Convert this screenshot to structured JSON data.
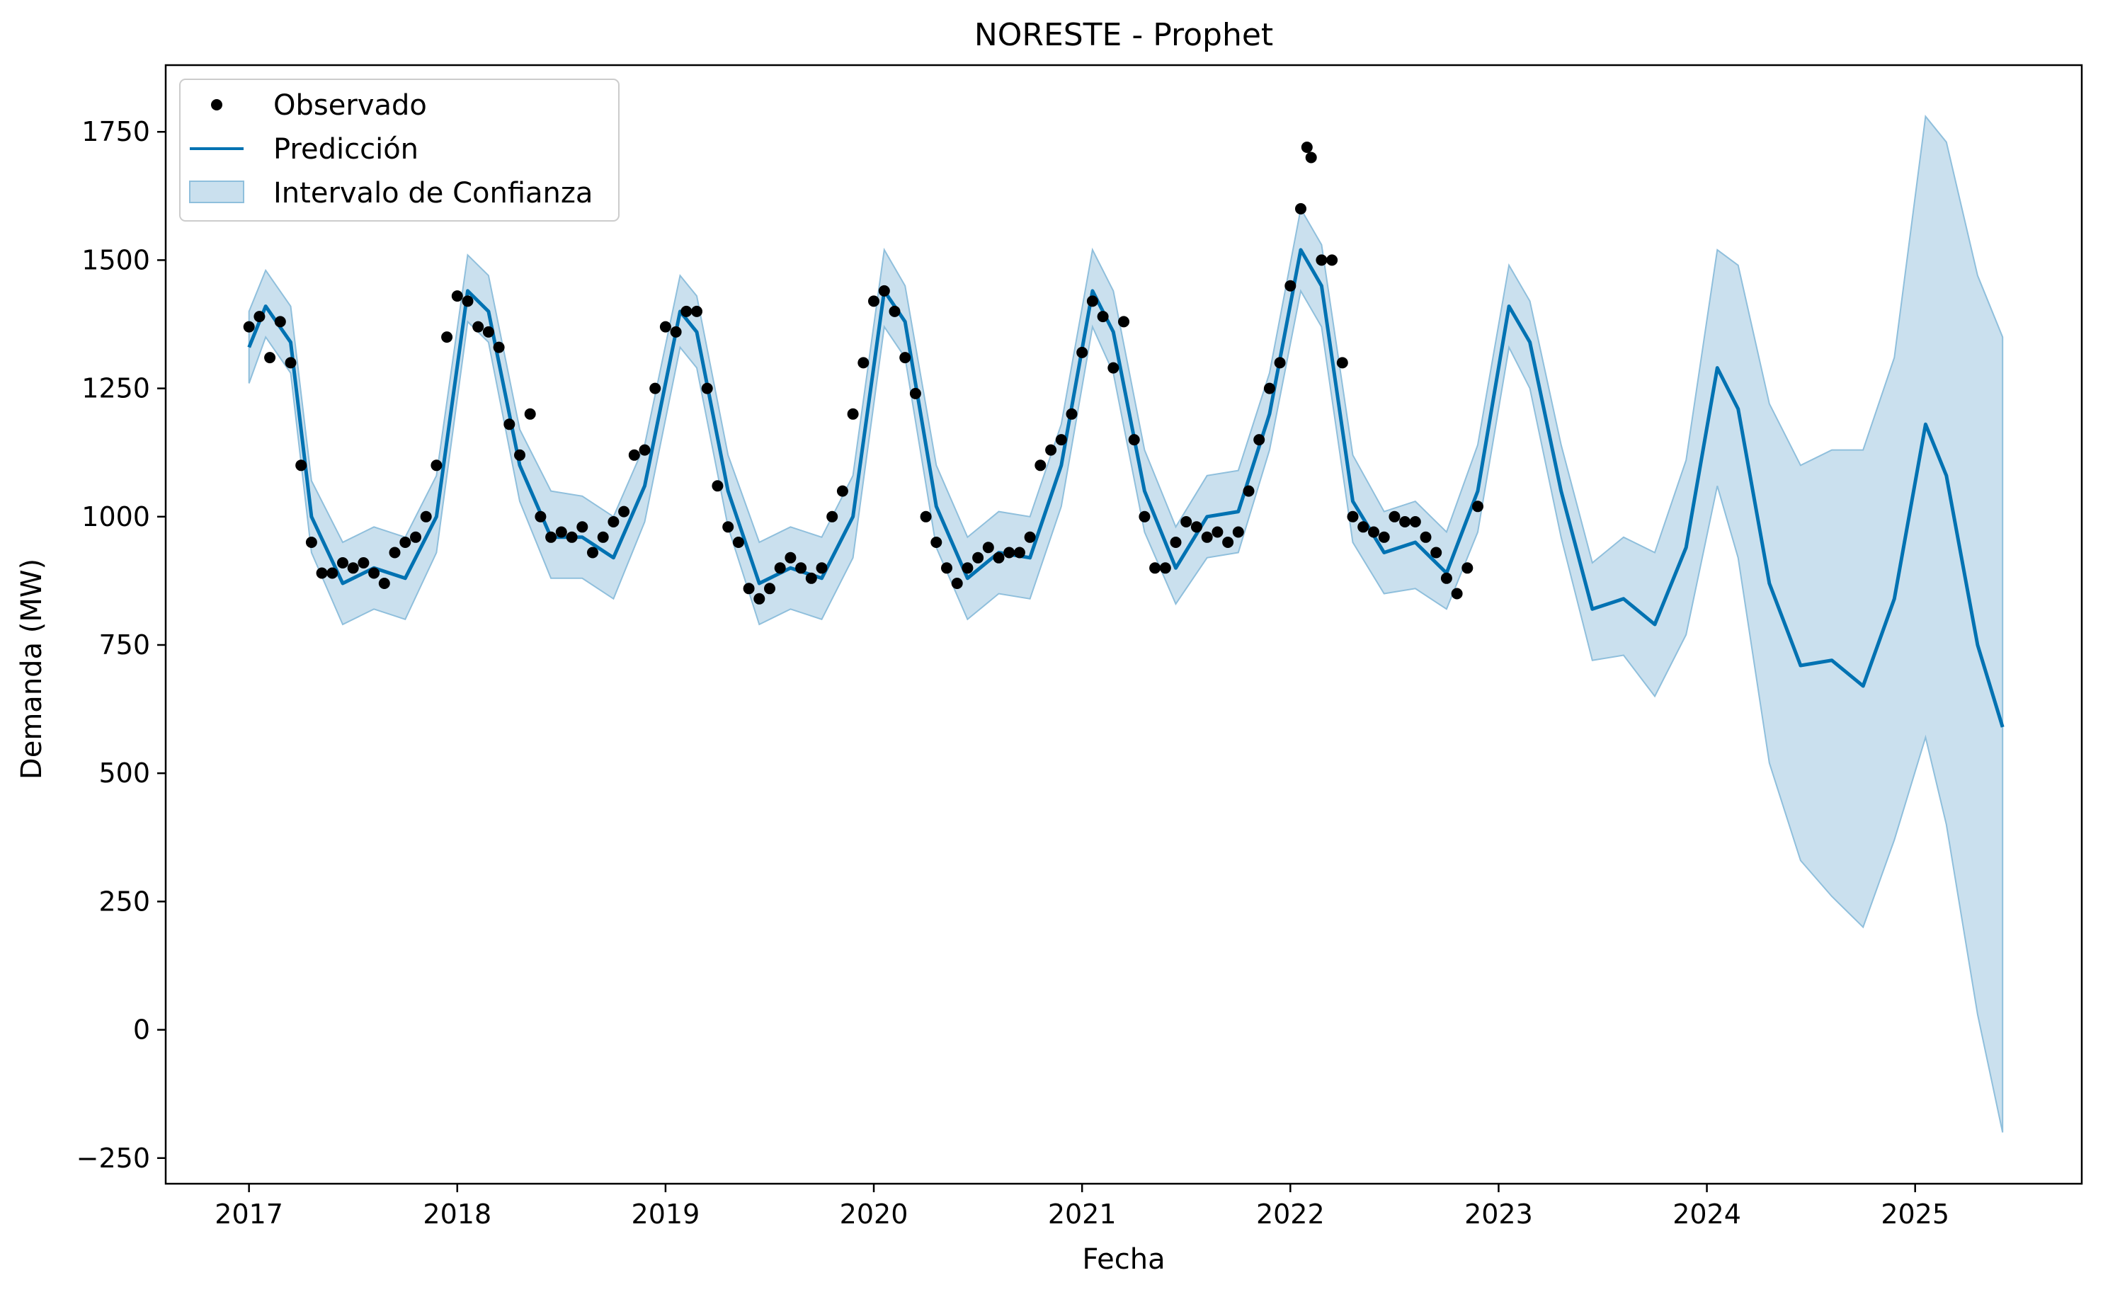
{
  "chart_data": {
    "type": "line",
    "title": "NORESTE - Prophet",
    "xlabel": "Fecha",
    "ylabel": "Demanda (MW)",
    "xlim": [
      2016.6,
      2025.8
    ],
    "ylim": [
      -300,
      1880
    ],
    "x_ticks": [
      2017,
      2018,
      2019,
      2020,
      2021,
      2022,
      2023,
      2024,
      2025
    ],
    "x_tick_labels": [
      "2017",
      "2018",
      "2019",
      "2020",
      "2021",
      "2022",
      "2023",
      "2024",
      "2025"
    ],
    "y_ticks": [
      -250,
      0,
      250,
      500,
      750,
      1000,
      1250,
      1500,
      1750
    ],
    "y_tick_labels": [
      "−250",
      "0",
      "250",
      "500",
      "750",
      "1000",
      "1250",
      "1500",
      "1750"
    ],
    "grid": false,
    "legend_position": "top-left",
    "legend": [
      "Observado",
      "Predicción",
      "Intervalo de Confianza"
    ],
    "colors": {
      "observed": "#000000",
      "prediction": "#0072B2",
      "interval_fill": "#a6cbe3",
      "interval_edge": "#8fbfdc"
    },
    "series": [
      {
        "name": "Predicción",
        "x": [
          2017.0,
          2017.08,
          2017.2,
          2017.3,
          2017.45,
          2017.6,
          2017.75,
          2017.9,
          2018.05,
          2018.15,
          2018.3,
          2018.45,
          2018.6,
          2018.75,
          2018.9,
          2019.07,
          2019.15,
          2019.3,
          2019.45,
          2019.6,
          2019.75,
          2019.9,
          2020.05,
          2020.15,
          2020.3,
          2020.45,
          2020.6,
          2020.75,
          2020.9,
          2021.05,
          2021.15,
          2021.3,
          2021.45,
          2021.6,
          2021.75,
          2021.9,
          2022.05,
          2022.15,
          2022.3,
          2022.45,
          2022.6,
          2022.75,
          2022.9,
          2023.05,
          2023.15,
          2023.3,
          2023.45,
          2023.6,
          2023.75,
          2023.9,
          2024.05,
          2024.15,
          2024.3,
          2024.45,
          2024.6,
          2024.75,
          2024.9,
          2025.05,
          2025.15,
          2025.3,
          2025.42
        ],
        "values": [
          1330,
          1410,
          1340,
          1000,
          870,
          900,
          880,
          1000,
          1440,
          1400,
          1100,
          960,
          960,
          920,
          1060,
          1400,
          1360,
          1050,
          870,
          900,
          880,
          1000,
          1440,
          1380,
          1020,
          880,
          930,
          920,
          1100,
          1440,
          1360,
          1050,
          900,
          1000,
          1010,
          1200,
          1520,
          1450,
          1030,
          930,
          950,
          890,
          1050,
          1410,
          1340,
          1050,
          820,
          840,
          790,
          940,
          1290,
          1210,
          870,
          710,
          720,
          670,
          840,
          1180,
          1080,
          750,
          590
        ]
      },
      {
        "name": "Observado",
        "x": [
          2017.0,
          2017.05,
          2017.1,
          2017.15,
          2017.2,
          2017.25,
          2017.3,
          2017.35,
          2017.4,
          2017.45,
          2017.5,
          2017.55,
          2017.6,
          2017.65,
          2017.7,
          2017.75,
          2017.8,
          2017.85,
          2017.9,
          2017.95,
          2018.0,
          2018.05,
          2018.1,
          2018.15,
          2018.2,
          2018.25,
          2018.3,
          2018.35,
          2018.4,
          2018.45,
          2018.5,
          2018.55,
          2018.6,
          2018.65,
          2018.7,
          2018.75,
          2018.8,
          2018.85,
          2018.9,
          2018.95,
          2019.0,
          2019.05,
          2019.1,
          2019.15,
          2019.2,
          2019.25,
          2019.3,
          2019.35,
          2019.4,
          2019.45,
          2019.5,
          2019.55,
          2019.6,
          2019.65,
          2019.7,
          2019.75,
          2019.8,
          2019.85,
          2019.9,
          2019.95,
          2020.0,
          2020.05,
          2020.1,
          2020.15,
          2020.2,
          2020.25,
          2020.3,
          2020.35,
          2020.4,
          2020.45,
          2020.5,
          2020.55,
          2020.6,
          2020.65,
          2020.7,
          2020.75,
          2020.8,
          2020.85,
          2020.9,
          2020.95,
          2021.0,
          2021.05,
          2021.1,
          2021.15,
          2021.2,
          2021.25,
          2021.3,
          2021.35,
          2021.4,
          2021.45,
          2021.5,
          2021.55,
          2021.6,
          2021.65,
          2021.7,
          2021.75,
          2021.8,
          2021.85,
          2021.9,
          2021.95,
          2022.0,
          2022.05,
          2022.08,
          2022.1,
          2022.15,
          2022.2,
          2022.25,
          2022.3,
          2022.35,
          2022.4,
          2022.45,
          2022.5,
          2022.55,
          2022.6,
          2022.65,
          2022.7,
          2022.75,
          2022.8,
          2022.85,
          2022.9
        ],
        "values": [
          1370,
          1390,
          1310,
          1380,
          1300,
          1100,
          950,
          890,
          890,
          910,
          900,
          910,
          890,
          870,
          930,
          950,
          960,
          1000,
          1100,
          1350,
          1430,
          1420,
          1370,
          1360,
          1330,
          1180,
          1120,
          1200,
          1000,
          960,
          970,
          960,
          980,
          930,
          960,
          990,
          1010,
          1120,
          1130,
          1250,
          1370,
          1360,
          1400,
          1400,
          1250,
          1060,
          980,
          950,
          860,
          840,
          860,
          900,
          920,
          900,
          880,
          900,
          1000,
          1050,
          1200,
          1300,
          1420,
          1440,
          1400,
          1310,
          1240,
          1000,
          950,
          900,
          870,
          900,
          920,
          940,
          920,
          930,
          930,
          960,
          1100,
          1130,
          1150,
          1200,
          1320,
          1420,
          1390,
          1290,
          1380,
          1150,
          1000,
          900,
          900,
          950,
          990,
          980,
          960,
          970,
          950,
          970,
          1050,
          1150,
          1250,
          1300,
          1450,
          1600,
          1720,
          1700,
          1500,
          1500,
          1300,
          1000,
          980,
          970,
          960,
          1000,
          990,
          990,
          960,
          930,
          880,
          850,
          900,
          1020
        ]
      },
      {
        "name": "Intervalo de Confianza",
        "x": [
          2017.0,
          2017.08,
          2017.2,
          2017.3,
          2017.45,
          2017.6,
          2017.75,
          2017.9,
          2018.05,
          2018.15,
          2018.3,
          2018.45,
          2018.6,
          2018.75,
          2018.9,
          2019.07,
          2019.15,
          2019.3,
          2019.45,
          2019.6,
          2019.75,
          2019.9,
          2020.05,
          2020.15,
          2020.3,
          2020.45,
          2020.6,
          2020.75,
          2020.9,
          2021.05,
          2021.15,
          2021.3,
          2021.45,
          2021.6,
          2021.75,
          2021.9,
          2022.05,
          2022.15,
          2022.3,
          2022.45,
          2022.6,
          2022.75,
          2022.9,
          2023.05,
          2023.15,
          2023.3,
          2023.45,
          2023.6,
          2023.75,
          2023.9,
          2024.05,
          2024.15,
          2024.3,
          2024.45,
          2024.6,
          2024.75,
          2024.9,
          2025.05,
          2025.15,
          2025.3,
          2025.42
        ],
        "lower": [
          1260,
          1350,
          1280,
          930,
          790,
          820,
          800,
          930,
          1380,
          1340,
          1030,
          880,
          880,
          840,
          990,
          1330,
          1290,
          980,
          790,
          820,
          800,
          920,
          1370,
          1310,
          940,
          800,
          850,
          840,
          1020,
          1370,
          1280,
          970,
          830,
          920,
          930,
          1130,
          1440,
          1370,
          950,
          850,
          860,
          820,
          970,
          1330,
          1250,
          960,
          720,
          730,
          650,
          770,
          1060,
          920,
          520,
          330,
          260,
          200,
          370,
          570,
          400,
          30,
          -200
        ],
        "upper": [
          1400,
          1480,
          1410,
          1070,
          950,
          980,
          960,
          1080,
          1510,
          1470,
          1170,
          1050,
          1040,
          1000,
          1140,
          1470,
          1430,
          1120,
          950,
          980,
          960,
          1080,
          1520,
          1450,
          1100,
          960,
          1010,
          1000,
          1180,
          1520,
          1440,
          1130,
          980,
          1080,
          1090,
          1280,
          1600,
          1530,
          1120,
          1010,
          1030,
          970,
          1140,
          1490,
          1420,
          1140,
          910,
          960,
          930,
          1110,
          1520,
          1490,
          1220,
          1100,
          1130,
          1130,
          1310,
          1780,
          1730,
          1470,
          1350
        ]
      }
    ]
  }
}
